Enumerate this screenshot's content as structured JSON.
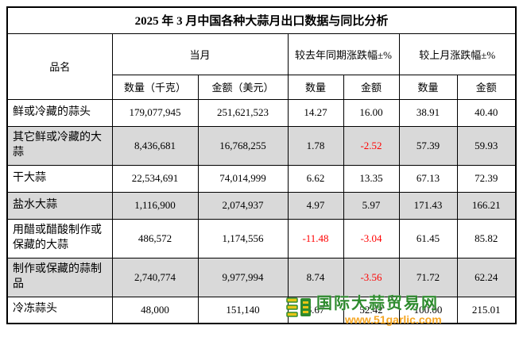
{
  "title": "2025 年 3 月中国各种大蒜月出口数据与同比分析",
  "colors": {
    "shaded_row": "#d9d9d9",
    "negative_value": "#ff0000",
    "watermark_green": "#2e8b2e",
    "watermark_orange": "#f5a623"
  },
  "table": {
    "product_header": "品名",
    "group_headers": [
      "当月",
      "较去年同期涨跌幅±%",
      "较上月涨跌幅±%"
    ],
    "sub_headers": [
      "数量（千克）",
      "金额（美元）",
      "数量",
      "金额",
      "数量",
      "金额"
    ],
    "rows": [
      {
        "name": "鲜或冷藏的蒜头",
        "cells": [
          "179,077,945",
          "251,621,523",
          "14.27",
          "16.00",
          "38.91",
          "40.40"
        ],
        "shaded": false
      },
      {
        "name": "其它鲜或冷藏的大蒜",
        "cells": [
          "8,436,681",
          "16,768,255",
          "1.78",
          "-2.52",
          "57.39",
          "59.93"
        ],
        "shaded": true
      },
      {
        "name": "干大蒜",
        "cells": [
          "22,534,691",
          "74,014,999",
          "6.62",
          "13.35",
          "67.13",
          "72.39"
        ],
        "shaded": false
      },
      {
        "name": "盐水大蒜",
        "cells": [
          "1,116,900",
          "2,074,937",
          "4.97",
          "5.97",
          "171.43",
          "166.21"
        ],
        "shaded": true
      },
      {
        "name": "用醋或醋酸制作或保藏的大蒜",
        "cells": [
          "486,572",
          "1,174,556",
          "-11.48",
          "-3.04",
          "61.45",
          "85.82"
        ],
        "shaded": false
      },
      {
        "name": "制作或保藏的蒜制品",
        "cells": [
          "2,740,774",
          "9,977,994",
          "8.74",
          "-3.56",
          "71.72",
          "62.24"
        ],
        "shaded": true
      },
      {
        "name": "冷冻蒜头",
        "cells": [
          "48,000",
          "151,140",
          "6.67",
          "52.42",
          "100.00",
          "215.01"
        ],
        "shaded": false
      }
    ]
  },
  "watermark": {
    "name": "国际大蒜贸易网",
    "url": "www.51garlic.com"
  }
}
